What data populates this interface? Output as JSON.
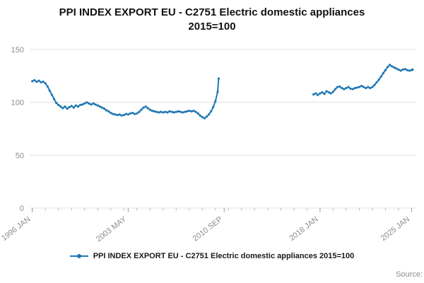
{
  "title_lines": [
    "PPI INDEX EXPORT EU - C2751 Electric domestic appliances",
    "2015=100"
  ],
  "legend": {
    "label": "PPI INDEX EXPORT EU - C2751 Electric domestic appliances 2015=100"
  },
  "source": {
    "label": "Source:"
  },
  "colors": {
    "line": "#1f77b4",
    "grid": "#e0e0e0",
    "tick_text": "#8c8c8c",
    "minor_tick": "#c2c2c2"
  },
  "chart_data": {
    "type": "line",
    "title": "PPI INDEX EXPORT EU - C2751 Electric domestic appliances 2015=100",
    "xlabel": "",
    "ylabel": "",
    "ylim": [
      0,
      150
    ],
    "yticks": [
      0,
      50,
      100,
      150
    ],
    "xlim": [
      1995.8,
      2025.3
    ],
    "xticks": [
      {
        "x": 1996.0,
        "label": "1996 JAN"
      },
      {
        "x": 2003.33,
        "label": "2003 MAY"
      },
      {
        "x": 2010.67,
        "label": "2010 SEP"
      },
      {
        "x": 2018.0,
        "label": "2018 JAN"
      },
      {
        "x": 2025.0,
        "label": "2025 JAN"
      }
    ],
    "minor_xticks": [
      1996,
      1997,
      1998,
      1999,
      2000,
      2001,
      2002,
      2003,
      2004,
      2005,
      2006,
      2007,
      2008,
      2009,
      2010,
      2011,
      2012,
      2013,
      2014,
      2015,
      2016,
      2017,
      2018,
      2019,
      2020,
      2021,
      2022,
      2023,
      2024,
      2025
    ],
    "grid": "horizontal",
    "legend_position": "bottom",
    "series": [
      {
        "name": "PPI INDEX EXPORT EU - C2751 Electric domestic appliances 2015=100",
        "segments": [
          [
            [
              1996.0,
              120.0
            ],
            [
              1996.17,
              121.0
            ],
            [
              1996.33,
              119.5
            ],
            [
              1996.5,
              120.5
            ],
            [
              1996.67,
              119.0
            ],
            [
              1996.83,
              119.5
            ],
            [
              1997.0,
              118.0
            ],
            [
              1997.17,
              115.0
            ],
            [
              1997.33,
              111.0
            ],
            [
              1997.5,
              107.0
            ],
            [
              1997.67,
              103.0
            ],
            [
              1997.83,
              99.5
            ],
            [
              1998.0,
              97.5
            ],
            [
              1998.17,
              96.0
            ],
            [
              1998.33,
              94.5
            ],
            [
              1998.5,
              96.0
            ],
            [
              1998.67,
              94.0
            ],
            [
              1998.83,
              95.5
            ],
            [
              1999.0,
              96.5
            ],
            [
              1999.17,
              95.0
            ],
            [
              1999.33,
              97.0
            ],
            [
              1999.5,
              96.0
            ],
            [
              1999.67,
              97.5
            ],
            [
              1999.83,
              98.0
            ],
            [
              2000.0,
              99.0
            ],
            [
              2000.17,
              100.0
            ],
            [
              2000.33,
              99.0
            ],
            [
              2000.5,
              98.0
            ],
            [
              2000.67,
              99.0
            ],
            [
              2000.83,
              98.0
            ],
            [
              2001.0,
              97.0
            ],
            [
              2001.17,
              96.0
            ],
            [
              2001.33,
              95.0
            ],
            [
              2001.5,
              94.0
            ],
            [
              2001.67,
              92.5
            ],
            [
              2001.83,
              91.5
            ],
            [
              2002.0,
              90.0
            ],
            [
              2002.17,
              89.0
            ],
            [
              2002.33,
              88.5
            ],
            [
              2002.5,
              88.0
            ],
            [
              2002.67,
              88.5
            ],
            [
              2002.83,
              87.5
            ],
            [
              2003.0,
              88.0
            ],
            [
              2003.17,
              89.0
            ],
            [
              2003.33,
              88.5
            ],
            [
              2003.5,
              89.5
            ],
            [
              2003.67,
              90.0
            ],
            [
              2003.83,
              89.0
            ],
            [
              2004.0,
              89.5
            ],
            [
              2004.17,
              91.0
            ],
            [
              2004.33,
              93.0
            ],
            [
              2004.5,
              95.0
            ],
            [
              2004.67,
              96.0
            ],
            [
              2004.83,
              94.5
            ],
            [
              2005.0,
              93.0
            ],
            [
              2005.17,
              92.0
            ],
            [
              2005.33,
              91.5
            ],
            [
              2005.5,
              91.0
            ],
            [
              2005.67,
              90.5
            ],
            [
              2005.83,
              91.0
            ],
            [
              2006.0,
              90.5
            ],
            [
              2006.17,
              91.0
            ],
            [
              2006.33,
              90.5
            ],
            [
              2006.5,
              91.5
            ],
            [
              2006.67,
              91.0
            ],
            [
              2006.83,
              90.5
            ],
            [
              2007.0,
              91.0
            ],
            [
              2007.17,
              91.5
            ],
            [
              2007.33,
              91.0
            ],
            [
              2007.5,
              90.5
            ],
            [
              2007.67,
              91.0
            ],
            [
              2007.83,
              91.5
            ],
            [
              2008.0,
              92.0
            ],
            [
              2008.17,
              91.5
            ],
            [
              2008.33,
              92.0
            ],
            [
              2008.5,
              91.0
            ],
            [
              2008.67,
              89.5
            ],
            [
              2008.83,
              87.5
            ],
            [
              2009.0,
              86.0
            ],
            [
              2009.17,
              85.0
            ],
            [
              2009.33,
              86.5
            ],
            [
              2009.5,
              88.5
            ],
            [
              2009.67,
              91.5
            ],
            [
              2009.83,
              95.5
            ],
            [
              2010.0,
              101.0
            ],
            [
              2010.17,
              110.0
            ],
            [
              2010.25,
              122.5
            ]
          ],
          [
            [
              2017.5,
              107.5
            ],
            [
              2017.67,
              108.5
            ],
            [
              2017.83,
              107.0
            ],
            [
              2018.0,
              108.5
            ],
            [
              2018.17,
              109.5
            ],
            [
              2018.33,
              108.0
            ],
            [
              2018.5,
              110.5
            ],
            [
              2018.67,
              109.5
            ],
            [
              2018.83,
              108.5
            ],
            [
              2019.0,
              110.0
            ],
            [
              2019.17,
              112.5
            ],
            [
              2019.33,
              114.5
            ],
            [
              2019.5,
              115.0
            ],
            [
              2019.67,
              113.5
            ],
            [
              2019.83,
              112.5
            ],
            [
              2020.0,
              113.5
            ],
            [
              2020.17,
              114.5
            ],
            [
              2020.33,
              113.0
            ],
            [
              2020.5,
              112.5
            ],
            [
              2020.67,
              113.5
            ],
            [
              2020.83,
              114.0
            ],
            [
              2021.0,
              114.5
            ],
            [
              2021.17,
              115.5
            ],
            [
              2021.33,
              114.5
            ],
            [
              2021.5,
              113.5
            ],
            [
              2021.67,
              114.5
            ],
            [
              2021.83,
              113.5
            ],
            [
              2022.0,
              114.5
            ],
            [
              2022.17,
              116.5
            ],
            [
              2022.33,
              119.0
            ],
            [
              2022.5,
              121.5
            ],
            [
              2022.67,
              124.5
            ],
            [
              2022.83,
              127.5
            ],
            [
              2023.0,
              130.5
            ],
            [
              2023.17,
              133.5
            ],
            [
              2023.33,
              135.5
            ],
            [
              2023.5,
              134.0
            ],
            [
              2023.67,
              133.0
            ],
            [
              2023.83,
              132.0
            ],
            [
              2024.0,
              131.0
            ],
            [
              2024.17,
              130.0
            ],
            [
              2024.33,
              131.0
            ],
            [
              2024.5,
              131.5
            ],
            [
              2024.67,
              130.5
            ],
            [
              2024.83,
              130.0
            ],
            [
              2025.0,
              130.5
            ],
            [
              2025.08,
              131.0
            ]
          ]
        ]
      }
    ]
  }
}
